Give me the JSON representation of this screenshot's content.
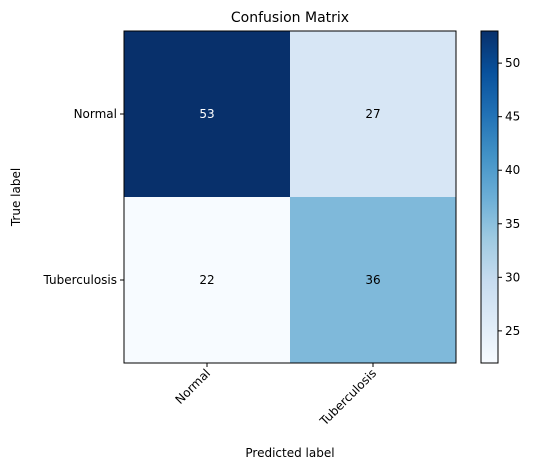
{
  "chart_data": {
    "type": "heatmap",
    "title": "Confusion Matrix",
    "xlabel": "Predicted label",
    "ylabel": "True label",
    "x_categories": [
      "Normal",
      "Tuberculosis"
    ],
    "y_categories": [
      "Normal",
      "Tuberculosis"
    ],
    "values": [
      [
        53,
        27
      ],
      [
        22,
        36
      ]
    ],
    "colormap": "Blues",
    "colorbar": {
      "range": [
        22,
        53
      ],
      "ticks": [
        25,
        30,
        35,
        40,
        45,
        50
      ]
    },
    "text_colors": {
      "dark_cell": "#ffffff",
      "light_cell": "#000000"
    },
    "grid": false,
    "x_tick_rotation": 45
  }
}
